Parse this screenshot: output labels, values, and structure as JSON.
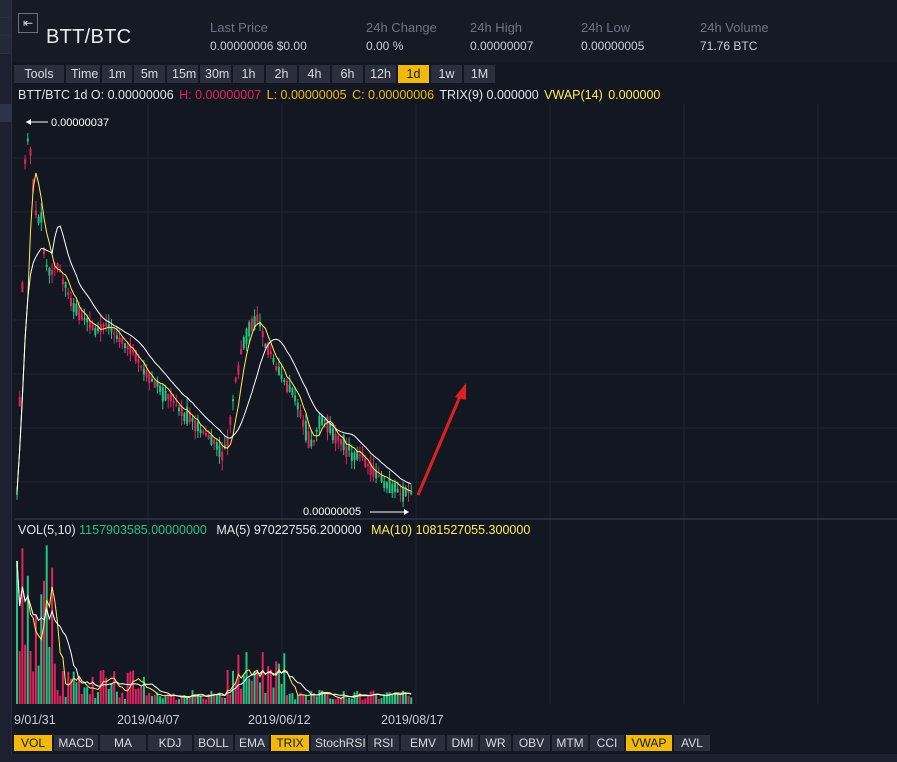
{
  "header": {
    "pair": "BTT/BTC",
    "stats": [
      {
        "label": "Last Price",
        "value": "0.00000006 $0.00"
      },
      {
        "label": "24h Change",
        "value": "0.00 %"
      },
      {
        "label": "24h High",
        "value": "0.00000007"
      },
      {
        "label": "24h Low",
        "value": "0.00000005"
      },
      {
        "label": "24h Volume",
        "value": "71.76 BTC"
      }
    ]
  },
  "intervals": [
    "Tools",
    "Time",
    "1m",
    "5m",
    "15m",
    "30m",
    "1h",
    "2h",
    "4h",
    "6h",
    "12h",
    "1d",
    "1w",
    "1M"
  ],
  "active_interval": "1d",
  "info": {
    "prefix": "BTT/BTC 1d O: 0.00000006",
    "high": "H: 0.00000007",
    "low": "L: 0.00000005",
    "close": "C: 0.00000006",
    "trix": "TRIX(9) 0.000000",
    "vwap_label": "VWAP(14)",
    "vwap_value": "0.000000"
  },
  "annotations": {
    "max_price": "0.00000037",
    "min_price": "0.00000005"
  },
  "volume": {
    "label": "VOL(5,10)",
    "vol_value": "1157903585.00000000",
    "ma5_label": "MA(5)",
    "ma5_value": "970227556.200000",
    "ma10_label": "MA(10)",
    "ma10_value": "1081527055.300000"
  },
  "dates": [
    "9/01/31",
    "2019/04/07",
    "2019/06/12",
    "2019/08/17"
  ],
  "indicators": [
    "VOL",
    "MACD",
    "MA",
    "KDJ",
    "BOLL",
    "EMA",
    "TRIX",
    "StochRSI",
    "RSI",
    "EMV",
    "DMI",
    "WR",
    "OBV",
    "MTM",
    "CCI",
    "VWAP",
    "AVL"
  ],
  "active_indicators": [
    "VOL",
    "TRIX",
    "VWAP"
  ],
  "colors": {
    "up": "#26c281",
    "down": "#e0245e",
    "accent": "#f0b90b",
    "ma_yellow": "#ffee58",
    "arrow_red": "#e02020"
  }
}
